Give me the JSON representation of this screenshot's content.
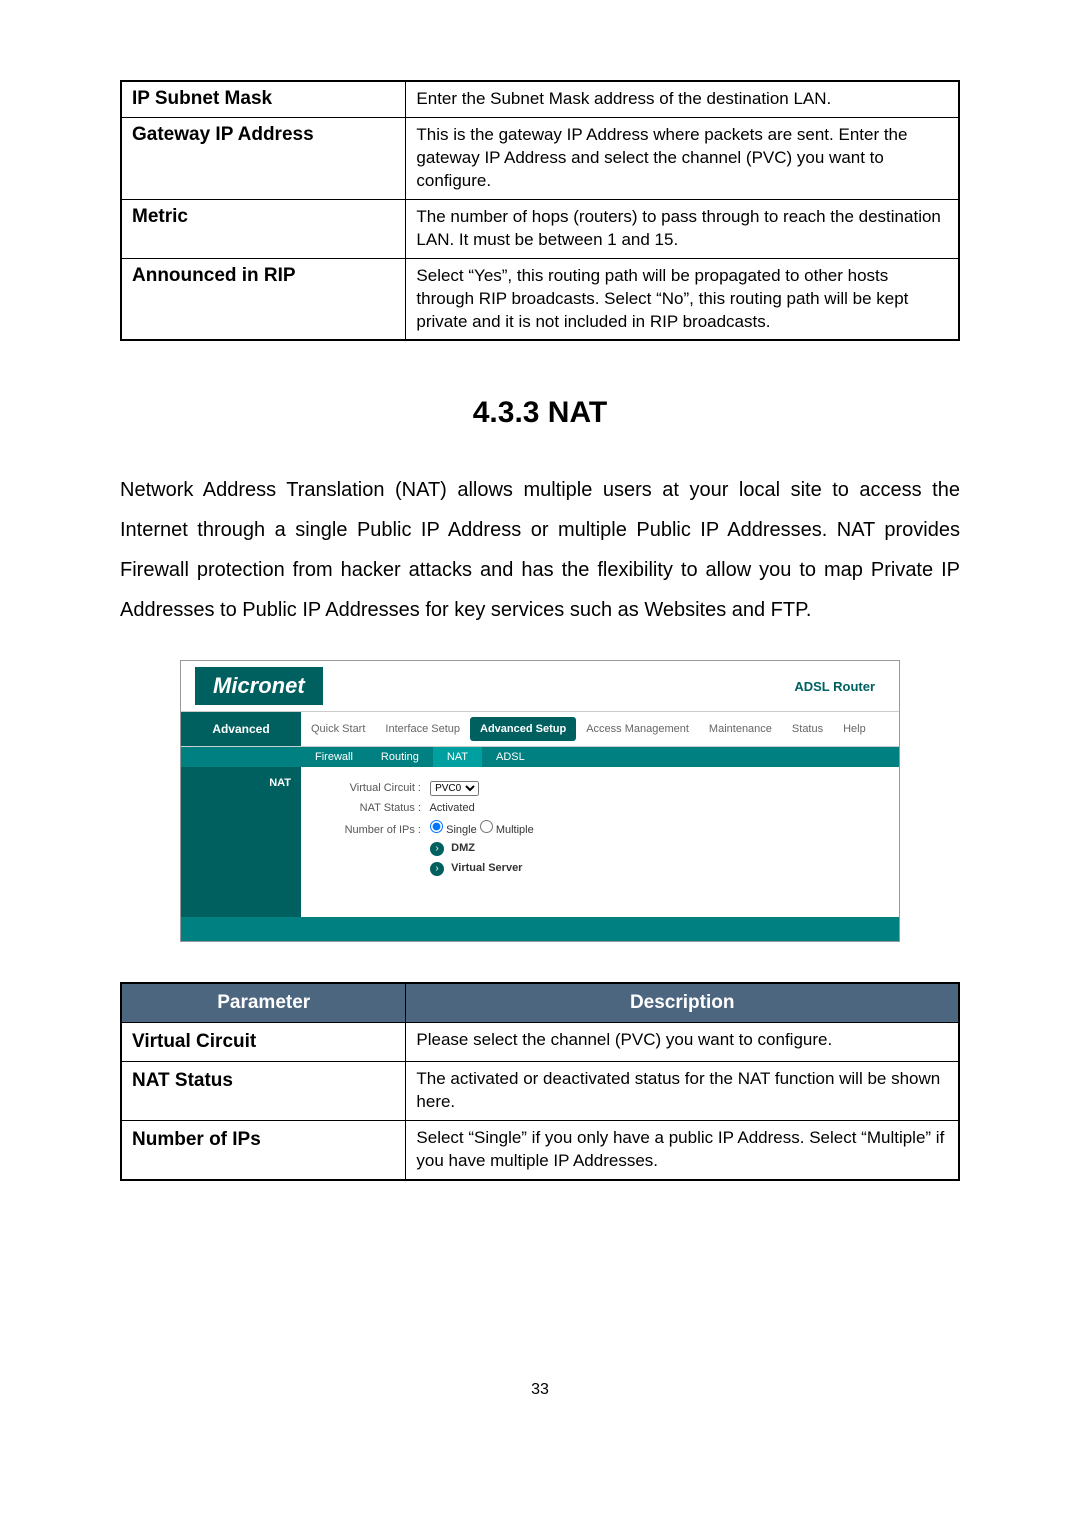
{
  "topTable": {
    "rows": [
      {
        "label": "IP Subnet Mask",
        "desc": "Enter the Subnet Mask address of the destination LAN."
      },
      {
        "label": "Gateway IP Address",
        "desc": "This is the gateway IP Address where packets are sent. Enter the gateway IP Address and select the channel (PVC) you want to configure."
      },
      {
        "label": "Metric",
        "desc": "The number of hops (routers) to pass through to reach the destination LAN. It must be between 1 and 15."
      },
      {
        "label": "Announced in RIP",
        "desc": "Select “Yes”, this routing path will be propagated to other hosts through RIP broadcasts. Select “No”, this routing path will be kept private and it is not included in RIP broadcasts."
      }
    ]
  },
  "sectionTitle": "4.3.3  NAT",
  "bodyText": "Network Address Translation (NAT) allows multiple users at your local site to access the Internet through a single Public IP Address or multiple Public IP Addresses. NAT provides Firewall protection from hacker attacks and has the flexibility to allow you to map Private IP Addresses to Public IP Addresses for key services such as Websites and FTP.",
  "screenshot": {
    "logo": "Micronet",
    "routerLabel": "ADSL Router",
    "sideLabel": "Advanced",
    "topTabs": [
      "Quick Start",
      "Interface Setup",
      "Advanced Setup",
      "Access Management",
      "Maintenance",
      "Status",
      "Help"
    ],
    "activeTopTab": 2,
    "subTabs": [
      "Firewall",
      "Routing",
      "NAT",
      "ADSL"
    ],
    "activeSubTab": 2,
    "contentSide": "NAT",
    "fields": {
      "vcLabel": "Virtual Circuit :",
      "vcValue": "PVC0",
      "statusLabel": "NAT Status :",
      "statusValue": "Activated",
      "nipLabel": "Number of IPs :",
      "nipOpt1": "Single",
      "nipOpt2": "Multiple",
      "dmz": "DMZ",
      "vserver": "Virtual Server"
    }
  },
  "paramTable": {
    "headers": [
      "Parameter",
      "Description"
    ],
    "rows": [
      {
        "label": "Virtual Circuit",
        "desc": "Please select the channel (PVC) you want to configure."
      },
      {
        "label": "NAT Status",
        "desc": "The activated or deactivated status for the NAT function will be shown here."
      },
      {
        "label": "Number of IPs",
        "desc": "Select “Single” if you only have a public IP Address. Select “Multiple” if you have multiple IP Addresses."
      }
    ]
  },
  "pageNumber": "33"
}
